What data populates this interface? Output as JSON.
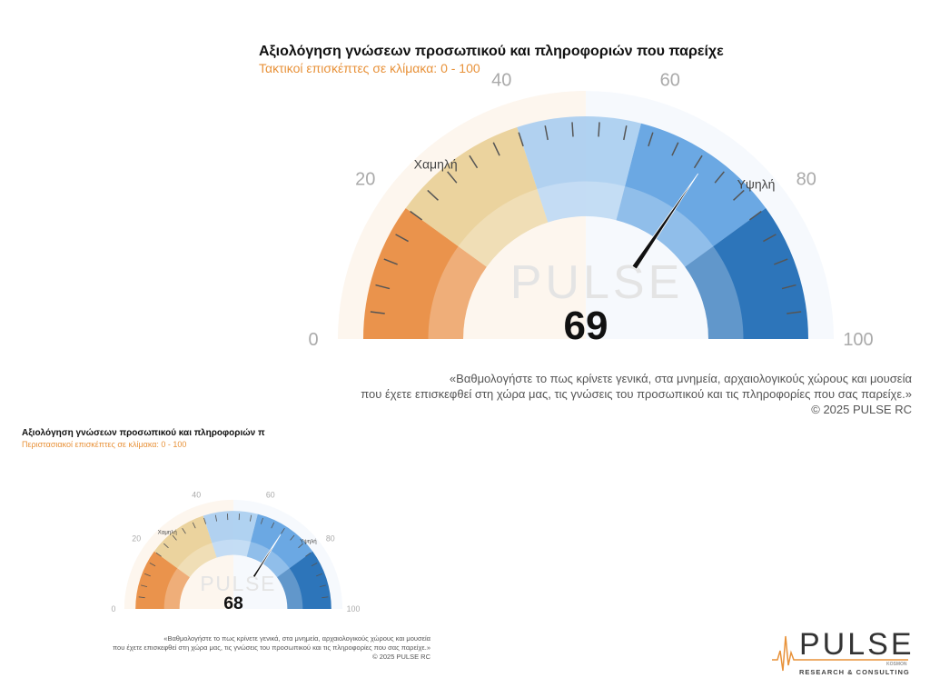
{
  "chart_data": [
    {
      "type": "gauge",
      "title": "Αξιολόγηση γνώσεων προσωπικού και πληροφοριών που παρείχε",
      "subtitle": "Τακτικοί επισκέπτες   σε κλίμακα:  0 - 100",
      "value": 69,
      "range": [
        0,
        100
      ],
      "tick_labels": [
        "0",
        "20",
        "40",
        "60",
        "80",
        "100"
      ],
      "zone_labels": {
        "low": "Χαμηλή",
        "high": "Υψηλή"
      },
      "bands": [
        {
          "from": 0,
          "to": 20,
          "color": "#e8883a"
        },
        {
          "from": 20,
          "to": 40,
          "color": "#e9cf95"
        },
        {
          "from": 40,
          "to": 58,
          "color": "#a9cdf0"
        },
        {
          "from": 58,
          "to": 80,
          "color": "#5c9fe0"
        },
        {
          "from": 80,
          "to": 100,
          "color": "#1766b3"
        }
      ],
      "note": [
        "«Βαθμολογήστε το πως κρίνετε γενικά, στα μνημεία, αρχαιολογικούς χώρους και μουσεία",
        "που έχετε επισκεφθεί στη χώρα μας, τις γνώσεις του προσωπικού και τις πληροφορίες που σας παρείχε.»",
        "©  2025  PULSE RC"
      ]
    },
    {
      "type": "gauge",
      "title": "Αξιολόγηση γνώσεων προσωπικού και πληροφοριών π",
      "subtitle": "Περιστασιακοί επισκέπτες   σε κλίμακα:  0 - 100",
      "value": 68,
      "range": [
        0,
        100
      ],
      "tick_labels": [
        "0",
        "20",
        "40",
        "60",
        "80",
        "100"
      ],
      "zone_labels": {
        "low": "Χαμηλή",
        "high": "Υψηλή"
      },
      "bands": [
        {
          "from": 0,
          "to": 20,
          "color": "#e8883a"
        },
        {
          "from": 20,
          "to": 40,
          "color": "#e9cf95"
        },
        {
          "from": 40,
          "to": 58,
          "color": "#a9cdf0"
        },
        {
          "from": 58,
          "to": 80,
          "color": "#5c9fe0"
        },
        {
          "from": 80,
          "to": 100,
          "color": "#1766b3"
        }
      ],
      "note": [
        "«Βαθμολογήστε το πως κρίνετε γενικά, στα μνημεία, αρχαιολογικούς χώρους και μουσεία",
        "που έχετε επισκεφθεί στη χώρα μας, τις γνώσεις του προσωπικού και τις πληροφορίες που σας παρείχε.»",
        "©  2025  PULSE RC"
      ]
    }
  ],
  "logo": {
    "name": "PULSE",
    "sub": "KOSMON",
    "tagline": "RESEARCH & CONSULTING"
  }
}
